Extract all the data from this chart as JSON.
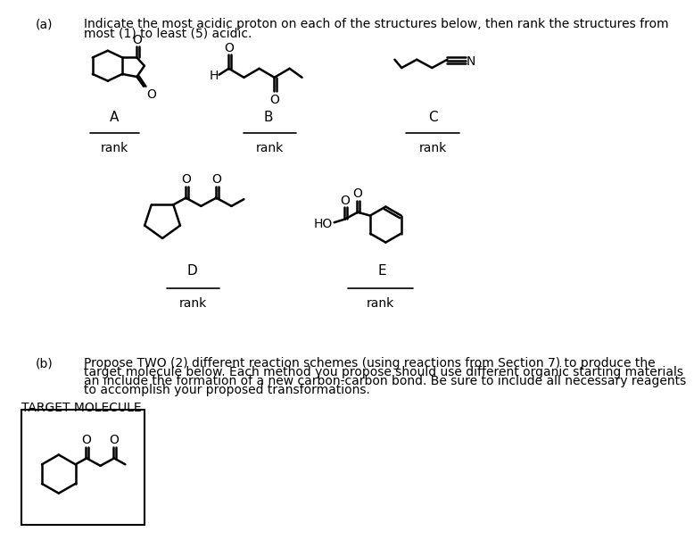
{
  "background_color": "#ffffff",
  "fig_width": 7.65,
  "fig_height": 7.61,
  "part_a_label": "(a)",
  "part_a_text1": "Indicate the most acidic proton on each of the structures below, then rank the structures from",
  "part_a_text2": "most (1) to least (5) acidic.",
  "part_b_label": "(b)",
  "part_b_text1": "Propose TWO (2) different reaction schemes (using reactions from Section 7) to produce the",
  "part_b_text2": "target molecule below. Each method you propose should use different organic starting materials",
  "part_b_text3": "an include the formation of a new carbon-carbon bond. Be sure to include all necessary reagents",
  "part_b_text4": "to accomplish your proposed transformations.",
  "target_molecule_label": "TARGET MOLECULE",
  "font_size_main": 10,
  "font_size_label": 11
}
